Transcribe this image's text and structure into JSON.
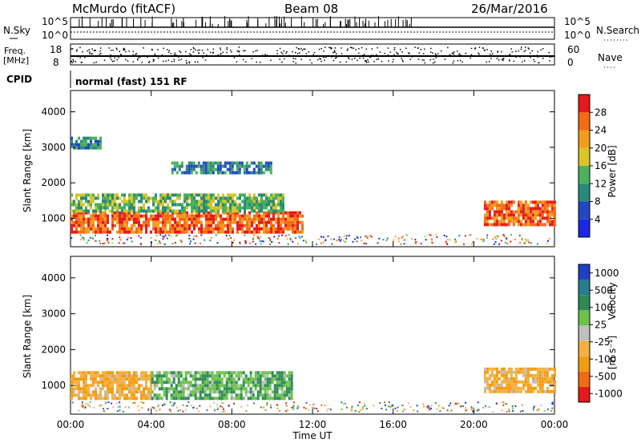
{
  "header": {
    "station": "McMurdo (fitACF)",
    "beam": "Beam 08",
    "date": "26/Mar/2016"
  },
  "panels": {
    "nsky_label": "N.Sky",
    "nsky_ticks": [
      "10^5",
      "10^0"
    ],
    "nsearch_label": "N.Search",
    "nsearch_ticks": [
      "10^5",
      "10^0"
    ],
    "freq_label_top": "Freq.",
    "freq_label_bottom": "[MHz]",
    "freq_ticks": [
      "18",
      "8"
    ],
    "nave_label": "Nave",
    "nave_ticks": [
      "60",
      "0"
    ],
    "cpid_label": "CPID",
    "cpid_text": "normal (fast) 151 RF"
  },
  "axes": {
    "ylabel": "Slant Range [km]",
    "yticks": [
      "1000",
      "2000",
      "3000",
      "4000"
    ],
    "xlabel": "Time UT",
    "xticks": [
      "00:00",
      "04:00",
      "08:00",
      "12:00",
      "16:00",
      "20:00",
      "00:00"
    ]
  },
  "colorbars": {
    "power": {
      "label": "Power [dB]",
      "ticks": [
        "4",
        "8",
        "12",
        "16",
        "20",
        "24",
        "28"
      ],
      "colors": [
        "#1a28e6",
        "#2346c2",
        "#2a8a7a",
        "#4bb15c",
        "#d8c629",
        "#f39c1c",
        "#f56a14",
        "#e41a1c"
      ]
    },
    "velocity": {
      "label": "Velocity",
      "unit": "[m s⁻¹]",
      "ticks": [
        "1000",
        "500",
        "100",
        "25",
        "-25",
        "-100",
        "-500",
        "-1000"
      ],
      "colors": [
        "#1f3fc4",
        "#2a7d8c",
        "#2e8b57",
        "#6cc24a",
        "#bfbfbf",
        "#f5b041",
        "#f39c12",
        "#f06a12",
        "#e51a1c"
      ]
    }
  },
  "chart_data": {
    "type": "heatmap",
    "title": "McMurdo (fitACF) Beam 08 26/Mar/2016",
    "xlabel": "Time UT",
    "ylabel": "Slant Range [km]",
    "xlim": [
      0,
      24
    ],
    "ylim": [
      200,
      4600
    ],
    "power_regions": [
      {
        "t0": 0.0,
        "t1": 11.5,
        "r0": 600,
        "r1": 1200,
        "level": "high"
      },
      {
        "t0": 20.5,
        "t1": 24.0,
        "r0": 800,
        "r1": 1500,
        "level": "high"
      },
      {
        "t0": 0.0,
        "t1": 10.5,
        "r0": 1200,
        "r1": 1700,
        "level": "medium"
      },
      {
        "t0": 5.0,
        "t1": 10.0,
        "r0": 2300,
        "r1": 2600,
        "level": "low"
      },
      {
        "t0": 0.0,
        "t1": 1.5,
        "r0": 3000,
        "r1": 3300,
        "level": "low"
      }
    ],
    "velocity_regions": [
      {
        "t0": 0.0,
        "t1": 4.0,
        "r0": 600,
        "r1": 1400,
        "sign": "negative"
      },
      {
        "t0": 4.0,
        "t1": 11.0,
        "r0": 600,
        "r1": 1400,
        "sign": "positive"
      },
      {
        "t0": 20.5,
        "t1": 24.0,
        "r0": 800,
        "r1": 1500,
        "sign": "negative"
      }
    ]
  }
}
